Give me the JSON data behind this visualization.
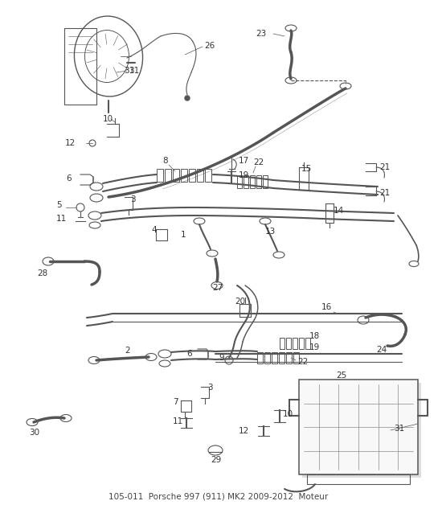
{
  "title": "105-011  Porsche 997 (911) MK2 2009-2012  Moteur",
  "bg_color": "#ffffff",
  "lc": "#555555",
  "fig_width": 5.45,
  "fig_height": 6.28,
  "dpi": 100
}
